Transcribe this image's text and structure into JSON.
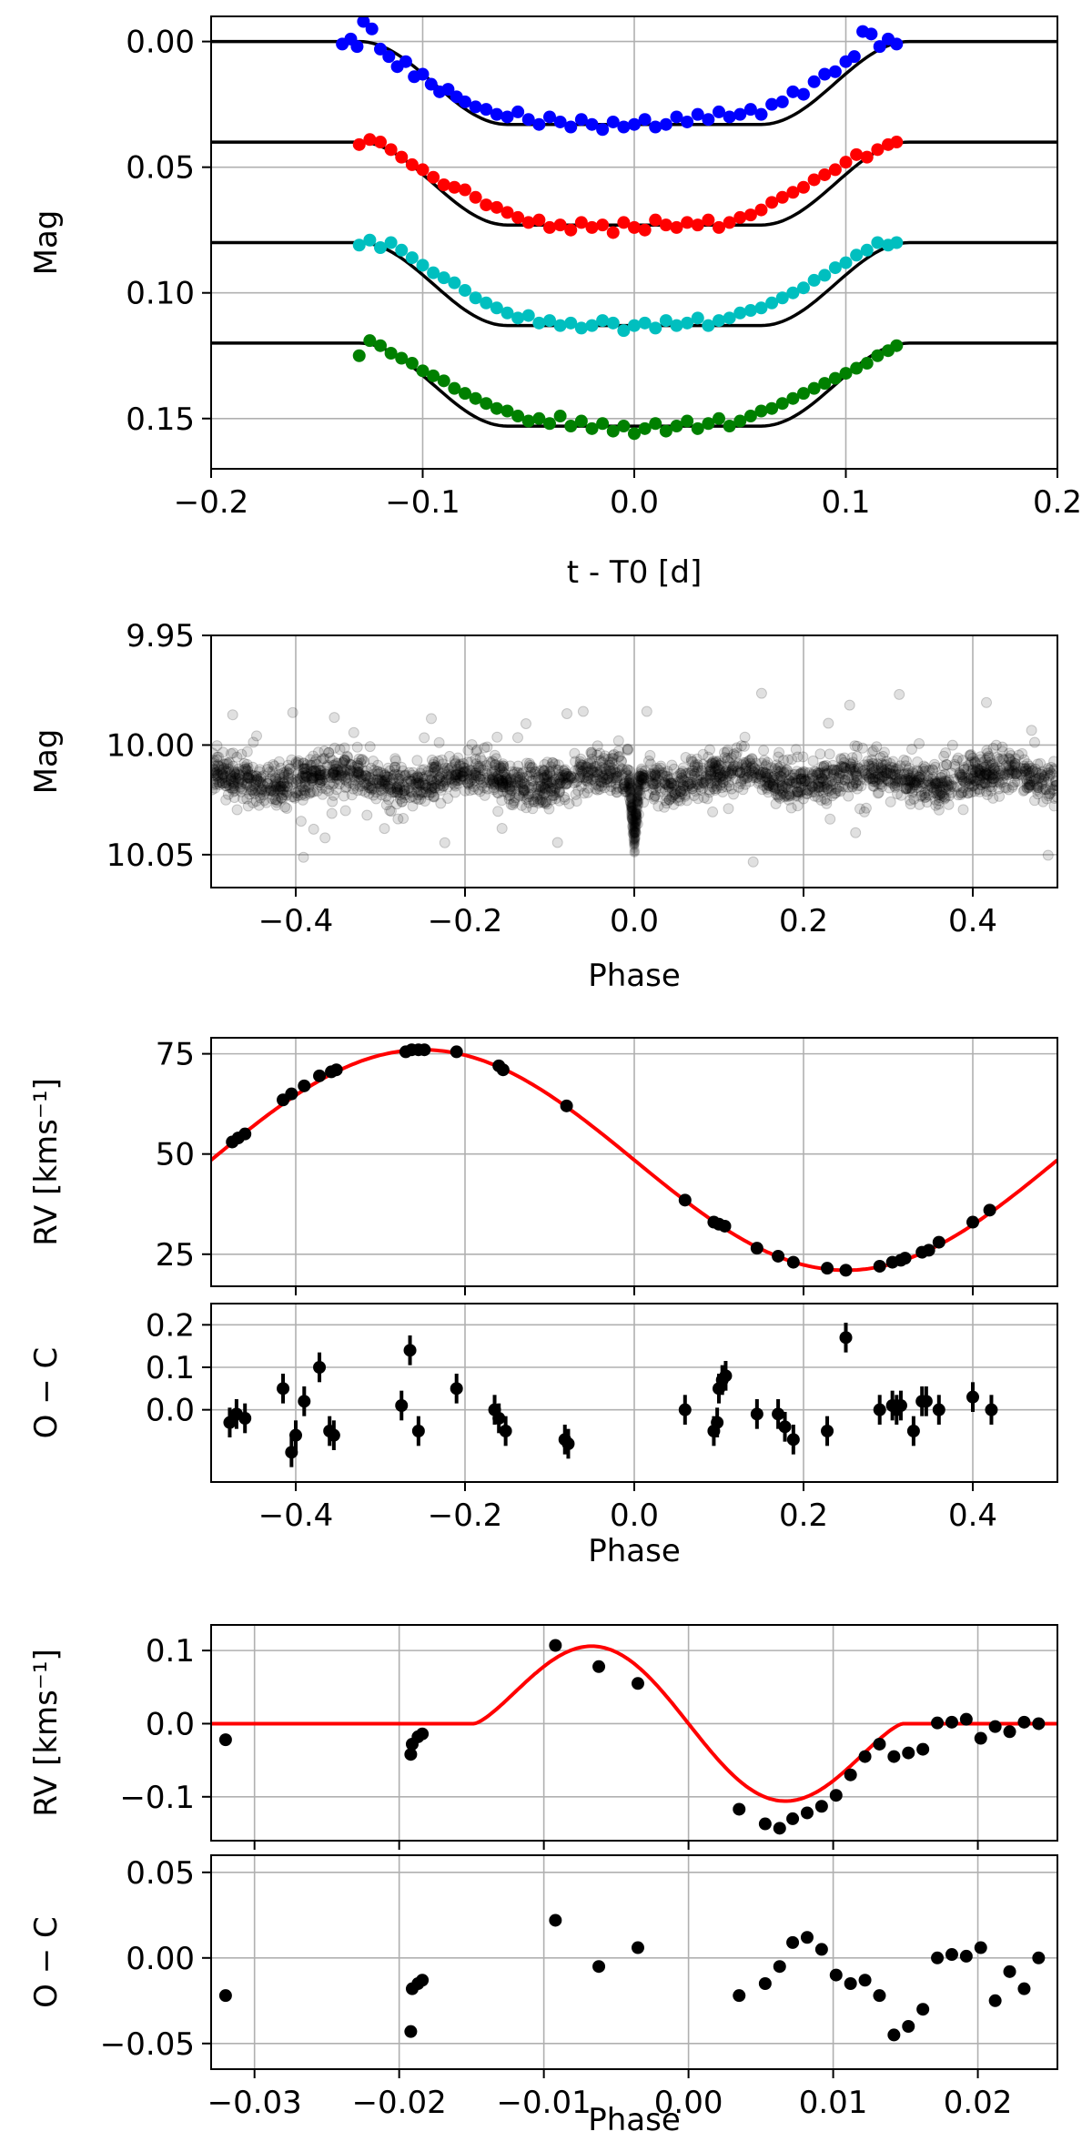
{
  "chart_data": [
    {
      "type": "scatter",
      "title": "",
      "xlabel": "t - T0 [d]",
      "ylabel": "Mag",
      "xlim": [
        -0.2,
        0.2
      ],
      "ylim": [
        0.17,
        -0.01
      ],
      "y_inverted": true,
      "grid": true,
      "x_ticks": [
        "−0.2",
        "−0.1",
        "0.0",
        "0.1",
        "0.2"
      ],
      "y_ticks": [
        "0.00",
        "0.05",
        "0.10",
        "0.15"
      ],
      "series": [
        {
          "name": "band 1",
          "color": "#0000ff",
          "offset": 0.0,
          "x": [
            -0.138,
            -0.134,
            -0.131,
            -0.128,
            -0.124,
            -0.12,
            -0.116,
            -0.112,
            -0.108,
            -0.104,
            -0.1,
            -0.096,
            -0.092,
            -0.088,
            -0.084,
            -0.08,
            -0.075,
            -0.07,
            -0.065,
            -0.06,
            -0.055,
            -0.05,
            -0.045,
            -0.04,
            -0.035,
            -0.03,
            -0.025,
            -0.02,
            -0.015,
            -0.01,
            -0.005,
            0.0,
            0.005,
            0.01,
            0.015,
            0.02,
            0.025,
            0.03,
            0.035,
            0.04,
            0.045,
            0.05,
            0.055,
            0.06,
            0.065,
            0.07,
            0.075,
            0.08,
            0.085,
            0.09,
            0.095,
            0.1,
            0.104,
            0.108,
            0.112,
            0.116,
            0.12,
            0.124
          ],
          "y": [
            0.001,
            -0.001,
            0.002,
            -0.008,
            -0.005,
            0.003,
            0.006,
            0.01,
            0.008,
            0.014,
            0.013,
            0.017,
            0.02,
            0.019,
            0.022,
            0.024,
            0.026,
            0.027,
            0.029,
            0.03,
            0.028,
            0.031,
            0.033,
            0.03,
            0.032,
            0.034,
            0.031,
            0.033,
            0.035,
            0.032,
            0.034,
            0.033,
            0.031,
            0.034,
            0.033,
            0.03,
            0.032,
            0.029,
            0.031,
            0.028,
            0.03,
            0.029,
            0.027,
            0.029,
            0.025,
            0.024,
            0.02,
            0.021,
            0.016,
            0.013,
            0.012,
            0.008,
            0.006,
            -0.004,
            -0.003,
            0.002,
            -0.001,
            0.001
          ]
        },
        {
          "name": "band 2",
          "color": "#ff0000",
          "offset": 0.04,
          "x": [
            -0.13,
            -0.125,
            -0.12,
            -0.115,
            -0.11,
            -0.105,
            -0.1,
            -0.095,
            -0.09,
            -0.085,
            -0.08,
            -0.075,
            -0.07,
            -0.065,
            -0.06,
            -0.055,
            -0.05,
            -0.045,
            -0.04,
            -0.035,
            -0.03,
            -0.025,
            -0.02,
            -0.015,
            -0.01,
            -0.005,
            0.0,
            0.005,
            0.01,
            0.015,
            0.02,
            0.025,
            0.03,
            0.035,
            0.04,
            0.045,
            0.05,
            0.055,
            0.06,
            0.065,
            0.07,
            0.075,
            0.08,
            0.085,
            0.09,
            0.095,
            0.1,
            0.105,
            0.11,
            0.115,
            0.12,
            0.124
          ],
          "y": [
            0.041,
            0.039,
            0.04,
            0.043,
            0.046,
            0.049,
            0.051,
            0.054,
            0.057,
            0.058,
            0.059,
            0.062,
            0.065,
            0.066,
            0.068,
            0.07,
            0.072,
            0.071,
            0.074,
            0.073,
            0.075,
            0.072,
            0.074,
            0.073,
            0.076,
            0.072,
            0.074,
            0.075,
            0.071,
            0.073,
            0.074,
            0.072,
            0.073,
            0.071,
            0.074,
            0.072,
            0.07,
            0.069,
            0.067,
            0.064,
            0.062,
            0.06,
            0.058,
            0.055,
            0.053,
            0.051,
            0.048,
            0.045,
            0.046,
            0.043,
            0.041,
            0.04
          ]
        },
        {
          "name": "band 3",
          "color": "#00bfbf",
          "offset": 0.08,
          "x": [
            -0.13,
            -0.125,
            -0.12,
            -0.115,
            -0.11,
            -0.105,
            -0.1,
            -0.095,
            -0.09,
            -0.085,
            -0.08,
            -0.075,
            -0.07,
            -0.065,
            -0.06,
            -0.055,
            -0.05,
            -0.045,
            -0.04,
            -0.035,
            -0.03,
            -0.025,
            -0.02,
            -0.015,
            -0.01,
            -0.005,
            0.0,
            0.005,
            0.01,
            0.015,
            0.02,
            0.025,
            0.03,
            0.035,
            0.04,
            0.045,
            0.05,
            0.055,
            0.06,
            0.065,
            0.07,
            0.075,
            0.08,
            0.085,
            0.09,
            0.095,
            0.1,
            0.105,
            0.11,
            0.115,
            0.12,
            0.124
          ],
          "y": [
            0.081,
            0.079,
            0.082,
            0.08,
            0.083,
            0.086,
            0.089,
            0.092,
            0.094,
            0.096,
            0.099,
            0.102,
            0.104,
            0.106,
            0.108,
            0.11,
            0.109,
            0.112,
            0.111,
            0.113,
            0.112,
            0.114,
            0.113,
            0.111,
            0.112,
            0.115,
            0.113,
            0.112,
            0.114,
            0.111,
            0.113,
            0.112,
            0.11,
            0.113,
            0.111,
            0.11,
            0.108,
            0.107,
            0.106,
            0.104,
            0.102,
            0.1,
            0.098,
            0.095,
            0.093,
            0.09,
            0.088,
            0.085,
            0.083,
            0.08,
            0.081,
            0.08
          ]
        },
        {
          "name": "band 4",
          "color": "#008000",
          "offset": 0.12,
          "x": [
            -0.13,
            -0.125,
            -0.12,
            -0.115,
            -0.11,
            -0.105,
            -0.1,
            -0.095,
            -0.09,
            -0.085,
            -0.08,
            -0.075,
            -0.07,
            -0.065,
            -0.06,
            -0.055,
            -0.05,
            -0.045,
            -0.04,
            -0.035,
            -0.03,
            -0.025,
            -0.02,
            -0.015,
            -0.01,
            -0.005,
            0.0,
            0.005,
            0.01,
            0.015,
            0.02,
            0.025,
            0.03,
            0.035,
            0.04,
            0.045,
            0.05,
            0.055,
            0.06,
            0.065,
            0.07,
            0.075,
            0.08,
            0.085,
            0.09,
            0.095,
            0.1,
            0.105,
            0.11,
            0.115,
            0.12,
            0.124
          ],
          "y": [
            0.125,
            0.119,
            0.121,
            0.124,
            0.126,
            0.128,
            0.131,
            0.133,
            0.135,
            0.138,
            0.14,
            0.142,
            0.144,
            0.146,
            0.147,
            0.149,
            0.151,
            0.15,
            0.152,
            0.149,
            0.153,
            0.151,
            0.154,
            0.152,
            0.155,
            0.153,
            0.156,
            0.154,
            0.152,
            0.155,
            0.153,
            0.151,
            0.154,
            0.152,
            0.15,
            0.153,
            0.151,
            0.149,
            0.147,
            0.146,
            0.144,
            0.142,
            0.14,
            0.138,
            0.136,
            0.134,
            0.132,
            0.13,
            0.128,
            0.125,
            0.123,
            0.121
          ]
        }
      ],
      "model": {
        "name": "transit model",
        "color": "#000000",
        "depth": 0.033,
        "t_ingress": 0.13,
        "t_flat": 0.06
      }
    },
    {
      "type": "scatter",
      "title": "",
      "xlabel": "Phase",
      "ylabel": "Mag",
      "xlim": [
        -0.5,
        0.5
      ],
      "ylim": [
        10.065,
        9.95
      ],
      "y_inverted": true,
      "grid": true,
      "x_ticks": [
        "−0.4",
        "−0.2",
        "0.0",
        "0.2",
        "0.4"
      ],
      "y_ticks": [
        "9.95",
        "10.00",
        "10.05"
      ],
      "series": [
        {
          "name": "folded photometry",
          "color": "#000000",
          "alpha": 0.12,
          "baseline": 10.015,
          "scatter_sigma": 0.006,
          "transit_depth": 0.033,
          "transit_center": 0.0,
          "transit_halfwidth": 0.006
        }
      ]
    },
    {
      "type": "scatter",
      "title": "",
      "xlabel": "",
      "ylabel": "RV [kms⁻¹]",
      "xlim": [
        -0.5,
        0.5
      ],
      "ylim": [
        17,
        79
      ],
      "grid": true,
      "x_ticks": [
        "−0.4",
        "−0.2",
        "0.0",
        "0.2",
        "0.4"
      ],
      "y_ticks": [
        "25",
        "50",
        "75"
      ],
      "model": {
        "name": "orbit fit",
        "color": "#ff0000",
        "gamma": 48.5,
        "K": 27.5
      },
      "series": [
        {
          "name": "RV data",
          "color": "#000000",
          "x": [
            -0.475,
            -0.468,
            -0.46,
            -0.415,
            -0.405,
            -0.39,
            -0.372,
            -0.358,
            -0.352,
            -0.27,
            -0.263,
            -0.255,
            -0.248,
            -0.21,
            -0.16,
            -0.155,
            -0.08,
            0.06,
            0.094,
            0.1,
            0.107,
            0.145,
            0.17,
            0.188,
            0.228,
            0.25,
            0.29,
            0.305,
            0.315,
            0.32,
            0.34,
            0.348,
            0.36,
            0.4,
            0.42
          ],
          "y": [
            53,
            54,
            55,
            63.5,
            65,
            67,
            69.5,
            70.5,
            71,
            75.5,
            76,
            76,
            76,
            75.5,
            72,
            71,
            62,
            38.5,
            33,
            32.5,
            32,
            26.5,
            24.5,
            23,
            21.5,
            21,
            22,
            23,
            23.5,
            24,
            25.5,
            26,
            28,
            33,
            36
          ]
        }
      ]
    },
    {
      "type": "scatter",
      "title": "",
      "xlabel": "Phase",
      "ylabel": "O − C",
      "xlim": [
        -0.5,
        0.5
      ],
      "ylim": [
        -0.17,
        0.25
      ],
      "grid": true,
      "x_ticks": [
        "−0.4",
        "−0.2",
        "0.0",
        "0.2",
        "0.4"
      ],
      "y_ticks": [
        "0.0",
        "0.1",
        "0.2"
      ],
      "series": [
        {
          "name": "residuals",
          "color": "#000000",
          "x": [
            -0.478,
            -0.47,
            -0.46,
            -0.415,
            -0.405,
            -0.4,
            -0.39,
            -0.372,
            -0.36,
            -0.355,
            -0.275,
            -0.265,
            -0.255,
            -0.21,
            -0.165,
            -0.16,
            -0.152,
            -0.082,
            -0.078,
            0.06,
            0.094,
            0.098,
            0.1,
            0.104,
            0.108,
            0.145,
            0.17,
            0.178,
            0.188,
            0.228,
            0.25,
            0.29,
            0.305,
            0.31,
            0.315,
            0.33,
            0.34,
            0.345,
            0.36,
            0.4,
            0.422
          ],
          "y": [
            -0.03,
            -0.01,
            -0.02,
            0.05,
            -0.1,
            -0.06,
            0.02,
            0.1,
            -0.05,
            -0.06,
            0.01,
            0.14,
            -0.05,
            0.05,
            0.0,
            -0.02,
            -0.05,
            -0.07,
            -0.08,
            0.0,
            -0.05,
            -0.03,
            0.05,
            0.07,
            0.08,
            -0.01,
            -0.01,
            -0.04,
            -0.07,
            -0.05,
            0.17,
            0.0,
            0.01,
            0.0,
            0.01,
            -0.05,
            0.02,
            0.02,
            0.0,
            0.03,
            0.0
          ],
          "yerr": 0.035
        }
      ]
    },
    {
      "type": "scatter",
      "title": "",
      "xlabel": "",
      "ylabel": "RV [kms⁻¹]",
      "xlim": [
        -0.033,
        0.0255
      ],
      "ylim": [
        -0.16,
        0.135
      ],
      "grid": true,
      "x_ticks": [
        "−0.03",
        "−0.02",
        "−0.01",
        "0.00",
        "0.01",
        "0.02"
      ],
      "y_ticks": [
        "0.1",
        "0.0",
        "−0.1"
      ],
      "model": {
        "name": "Rossiter-McLaughlin model",
        "color": "#ff0000",
        "t1": -0.0148,
        "t4": 0.0148,
        "amplitude": 0.118
      },
      "series": [
        {
          "name": "RM data",
          "color": "#000000",
          "x": [
            -0.032,
            -0.0192,
            -0.0191,
            -0.0187,
            -0.0184,
            -0.0092,
            -0.0062,
            -0.0035,
            0.0035,
            0.0053,
            0.0063,
            0.0072,
            0.0082,
            0.0092,
            0.0102,
            0.0112,
            0.0122,
            0.0132,
            0.0142,
            0.0152,
            0.0162,
            0.0172,
            0.0182,
            0.0192,
            0.0202,
            0.0212,
            0.0222,
            0.0232,
            0.0242
          ],
          "y": [
            -0.022,
            -0.042,
            -0.028,
            -0.018,
            -0.014,
            0.107,
            0.078,
            0.055,
            -0.117,
            -0.137,
            -0.143,
            -0.13,
            -0.122,
            -0.113,
            -0.098,
            -0.07,
            -0.045,
            -0.028,
            -0.045,
            -0.04,
            -0.035,
            0.001,
            0.002,
            0.006,
            -0.02,
            -0.004,
            -0.011,
            0.002,
            0.0
          ]
        }
      ]
    },
    {
      "type": "scatter",
      "title": "",
      "xlabel": "Phase",
      "ylabel": "O − C",
      "xlim": [
        -0.033,
        0.0255
      ],
      "ylim": [
        -0.065,
        0.06
      ],
      "grid": true,
      "x_ticks": [
        "−0.03",
        "−0.02",
        "−0.01",
        "0.00",
        "0.01",
        "0.02"
      ],
      "y_ticks": [
        "0.05",
        "0.00",
        "−0.05"
      ],
      "series": [
        {
          "name": "RM residuals",
          "color": "#000000",
          "x": [
            -0.032,
            -0.0192,
            -0.0191,
            -0.0187,
            -0.0184,
            -0.0092,
            -0.0062,
            -0.0035,
            0.0035,
            0.0053,
            0.0063,
            0.0072,
            0.0082,
            0.0092,
            0.0102,
            0.0112,
            0.0122,
            0.0132,
            0.0142,
            0.0152,
            0.0162,
            0.0172,
            0.0182,
            0.0192,
            0.0202,
            0.0212,
            0.0222,
            0.0232,
            0.0242
          ],
          "y": [
            -0.022,
            -0.043,
            -0.018,
            -0.015,
            -0.013,
            0.022,
            -0.005,
            0.006,
            -0.022,
            -0.015,
            -0.005,
            0.009,
            0.012,
            0.005,
            -0.01,
            -0.015,
            -0.013,
            -0.022,
            -0.045,
            -0.04,
            -0.03,
            0.0,
            0.002,
            0.001,
            0.006,
            -0.025,
            -0.008,
            -0.018,
            0.0
          ]
        }
      ]
    }
  ]
}
